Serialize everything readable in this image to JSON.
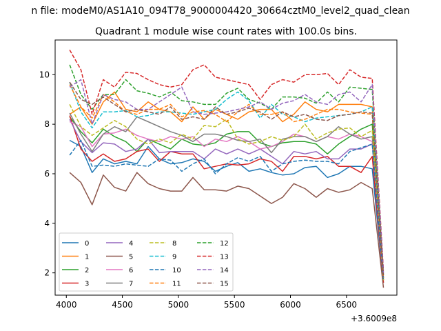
{
  "chart_data": {
    "type": "line",
    "title": "Quadrant 1 module wise count rates with 100.0s bins.",
    "suptitle": "n file: modeM0/AS1A10_094T78_9000004420_30664cztM0_level2_quad_clean",
    "offset_label": "+3.6009e8",
    "xlabel": "",
    "ylabel": "",
    "xlim": [
      3900,
      6950
    ],
    "ylim": [
      1.1,
      11.4
    ],
    "x_ticks": [
      4000,
      4500,
      5000,
      5500,
      6000,
      6500
    ],
    "y_ticks": [
      2,
      4,
      6,
      8,
      10
    ],
    "grid": false,
    "legend_placement": "lower-left",
    "legend_columns": 4,
    "x": [
      4030,
      4130,
      4230,
      4330,
      4430,
      4530,
      4630,
      4730,
      4830,
      4930,
      5030,
      5130,
      5230,
      5330,
      5430,
      5530,
      5630,
      5730,
      5830,
      5930,
      6030,
      6130,
      6230,
      6330,
      6430,
      6530,
      6630,
      6730,
      6830
    ],
    "series": [
      {
        "name": "0",
        "color": "#1f77b4",
        "dash": "solid",
        "values": [
          7.35,
          7.1,
          6.05,
          6.6,
          6.4,
          6.5,
          6.4,
          7.1,
          6.6,
          6.4,
          6.45,
          6.6,
          6.5,
          6.1,
          6.3,
          6.45,
          6.1,
          6.2,
          6.05,
          5.95,
          6.0,
          6.25,
          6.3,
          5.85,
          6.0,
          6.3,
          6.3,
          6.2,
          1.6
        ]
      },
      {
        "name": "1",
        "color": "#ff7f0e",
        "dash": "solid",
        "values": [
          8.4,
          8.7,
          8.0,
          8.9,
          9.3,
          8.6,
          8.5,
          8.9,
          8.6,
          8.5,
          8.1,
          8.7,
          8.2,
          8.6,
          8.4,
          8.2,
          8.5,
          8.6,
          8.6,
          8.1,
          8.4,
          8.9,
          8.6,
          8.5,
          8.8,
          8.8,
          8.8,
          8.7,
          1.8
        ]
      },
      {
        "name": "2",
        "color": "#2ca02c",
        "dash": "solid",
        "values": [
          8.3,
          7.7,
          7.25,
          7.8,
          7.5,
          7.3,
          6.9,
          7.4,
          7.2,
          7.0,
          7.4,
          7.2,
          7.15,
          7.25,
          7.6,
          7.7,
          7.7,
          7.25,
          7.1,
          7.25,
          7.3,
          7.3,
          7.2,
          6.8,
          7.2,
          7.5,
          7.8,
          8.0,
          1.7
        ]
      },
      {
        "name": "3",
        "color": "#d62728",
        "dash": "solid",
        "values": [
          8.35,
          7.0,
          6.5,
          6.8,
          6.5,
          6.6,
          6.9,
          7.0,
          6.5,
          6.9,
          6.8,
          6.8,
          6.2,
          6.3,
          6.4,
          6.35,
          6.4,
          6.6,
          6.5,
          6.1,
          6.7,
          6.7,
          6.6,
          6.7,
          6.3,
          6.3,
          6.05,
          6.7,
          1.6
        ]
      },
      {
        "name": "4",
        "color": "#9467bd",
        "dash": "solid",
        "values": [
          8.2,
          7.3,
          6.85,
          7.25,
          7.2,
          6.9,
          7.0,
          7.4,
          6.85,
          6.9,
          6.9,
          6.9,
          6.6,
          7.0,
          6.8,
          7.0,
          6.8,
          7.0,
          6.7,
          6.4,
          6.9,
          6.8,
          6.9,
          6.6,
          6.6,
          7.0,
          7.0,
          7.2,
          1.7
        ]
      },
      {
        "name": "5",
        "color": "#8c564b",
        "dash": "solid",
        "values": [
          6.05,
          5.65,
          4.75,
          5.95,
          5.45,
          5.3,
          6.05,
          5.6,
          5.4,
          5.3,
          5.3,
          5.85,
          5.35,
          5.35,
          5.3,
          5.5,
          5.4,
          5.1,
          4.8,
          5.05,
          5.6,
          5.4,
          5.05,
          5.4,
          5.25,
          5.35,
          5.65,
          5.4,
          1.4
        ]
      },
      {
        "name": "6",
        "color": "#e377c2",
        "dash": "solid",
        "values": [
          8.1,
          7.9,
          7.1,
          7.6,
          7.65,
          7.8,
          7.55,
          7.4,
          7.3,
          7.5,
          7.4,
          7.5,
          7.1,
          7.4,
          7.3,
          7.5,
          7.3,
          7.0,
          7.1,
          7.3,
          7.6,
          7.5,
          7.3,
          7.5,
          7.4,
          7.6,
          7.5,
          7.3,
          1.7
        ]
      },
      {
        "name": "7",
        "color": "#7f7f7f",
        "dash": "solid",
        "values": [
          8.45,
          7.6,
          6.9,
          7.6,
          7.9,
          7.7,
          8.3,
          8.1,
          7.9,
          7.7,
          7.55,
          7.3,
          7.6,
          7.6,
          7.5,
          7.35,
          7.3,
          7.4,
          6.85,
          7.4,
          7.5,
          7.5,
          7.3,
          7.5,
          7.9,
          7.6,
          7.4,
          7.5,
          1.8
        ]
      },
      {
        "name": "8",
        "color": "#bcbd22",
        "dash": "dashed",
        "values": [
          8.8,
          7.9,
          7.55,
          7.85,
          8.15,
          7.9,
          7.4,
          7.2,
          7.4,
          7.25,
          7.6,
          7.4,
          7.95,
          7.9,
          8.2,
          7.4,
          7.2,
          7.3,
          7.5,
          7.35,
          7.5,
          8.0,
          7.4,
          7.65,
          7.8,
          7.85,
          7.5,
          7.75,
          1.7
        ]
      },
      {
        "name": "9",
        "color": "#17becf",
        "dash": "dashed",
        "values": [
          9.7,
          8.5,
          7.85,
          8.5,
          8.5,
          8.55,
          8.3,
          8.35,
          8.5,
          8.5,
          8.45,
          8.4,
          8.5,
          8.6,
          9.0,
          9.3,
          8.95,
          8.25,
          8.8,
          8.4,
          8.3,
          8.1,
          8.25,
          8.3,
          8.35,
          8.4,
          8.5,
          8.7,
          1.9
        ]
      },
      {
        "name": "10",
        "color": "#1f77b4",
        "dash": "dashed",
        "values": [
          6.75,
          7.35,
          6.3,
          6.35,
          6.3,
          6.4,
          6.35,
          6.3,
          6.6,
          6.55,
          6.1,
          6.4,
          6.6,
          6.0,
          6.4,
          6.65,
          6.5,
          6.7,
          6.1,
          6.4,
          6.5,
          6.55,
          6.5,
          6.5,
          6.4,
          6.9,
          7.05,
          7.2,
          1.7
        ]
      },
      {
        "name": "11",
        "color": "#ff7f0e",
        "dash": "dashed",
        "values": [
          9.6,
          8.7,
          8.25,
          9.2,
          8.9,
          8.5,
          8.4,
          8.6,
          8.6,
          8.8,
          8.3,
          8.5,
          8.55,
          8.4,
          8.1,
          8.5,
          8.8,
          8.4,
          8.4,
          8.5,
          8.1,
          8.2,
          8.4,
          8.6,
          8.6,
          8.5,
          8.45,
          8.4,
          1.8
        ]
      },
      {
        "name": "12",
        "color": "#2ca02c",
        "dash": "dashed",
        "values": [
          10.4,
          9.2,
          8.6,
          9.2,
          9.2,
          9.8,
          9.35,
          9.25,
          9.1,
          9.3,
          8.95,
          8.9,
          8.8,
          8.8,
          9.25,
          9.45,
          9.0,
          8.85,
          8.6,
          9.1,
          9.1,
          9.05,
          8.85,
          9.3,
          8.9,
          9.5,
          9.45,
          9.4,
          1.9
        ]
      },
      {
        "name": "13",
        "color": "#d62728",
        "dash": "dashed",
        "values": [
          11.0,
          10.2,
          8.4,
          9.8,
          9.5,
          10.1,
          10.05,
          9.8,
          9.6,
          9.5,
          9.6,
          10.2,
          10.4,
          9.9,
          9.8,
          9.7,
          9.6,
          9.0,
          9.6,
          9.8,
          9.7,
          10.0,
          10.0,
          10.05,
          9.6,
          10.2,
          9.9,
          9.85,
          2.1
        ]
      },
      {
        "name": "14",
        "color": "#9467bd",
        "dash": "dashed",
        "values": [
          9.5,
          9.8,
          8.0,
          9.2,
          9.0,
          8.9,
          8.6,
          8.6,
          8.9,
          9.2,
          9.5,
          8.5,
          8.4,
          8.45,
          8.5,
          8.6,
          8.7,
          8.9,
          8.6,
          8.85,
          8.95,
          9.2,
          8.9,
          8.8,
          9.2,
          9.3,
          8.9,
          9.6,
          2.0
        ]
      },
      {
        "name": "15",
        "color": "#8c564b",
        "dash": "dashed",
        "values": [
          9.7,
          9.0,
          8.8,
          9.1,
          8.8,
          8.5,
          8.6,
          8.5,
          8.4,
          8.7,
          8.2,
          8.3,
          8.2,
          8.7,
          8.4,
          8.5,
          8.65,
          8.5,
          8.2,
          8.5,
          8.3,
          8.4,
          8.2,
          8.15,
          8.35,
          8.4,
          8.5,
          8.45,
          1.9
        ]
      }
    ]
  }
}
